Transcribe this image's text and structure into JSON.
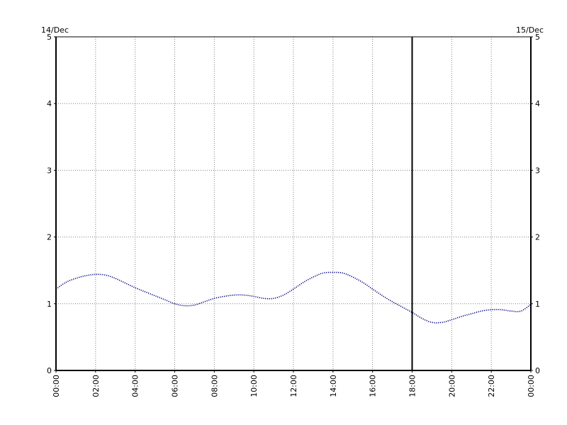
{
  "chart_data": {
    "type": "line",
    "title": "",
    "xlabel": "",
    "ylabel": "",
    "start_date_label": "14/Dec",
    "end_date_label": "15/Dec",
    "x_tick_labels": [
      "00:00",
      "02:00",
      "04:00",
      "06:00",
      "08:00",
      "10:00",
      "12:00",
      "14:00",
      "16:00",
      "18:00",
      "20:00",
      "22:00",
      "00:00"
    ],
    "y_ticks": [
      0,
      1,
      2,
      3,
      4,
      5
    ],
    "xlim": [
      0,
      24
    ],
    "ylim": [
      0,
      5
    ],
    "grid": true,
    "marker_line_x": 18,
    "series": [
      {
        "color": "#000080",
        "x": [
          0,
          0.5,
          1,
          1.5,
          2,
          2.5,
          3,
          3.5,
          4,
          4.5,
          5,
          5.5,
          6,
          6.5,
          7,
          7.5,
          8,
          8.5,
          9,
          9.5,
          10,
          10.5,
          11,
          11.5,
          12,
          12.5,
          13,
          13.5,
          14,
          14.5,
          15,
          15.5,
          16,
          16.5,
          17,
          17.5,
          18,
          18.5,
          19,
          19.5,
          20,
          20.5,
          21,
          21.5,
          22,
          22.5,
          23,
          23.5,
          24
        ],
        "y": [
          1.22,
          1.32,
          1.38,
          1.42,
          1.44,
          1.43,
          1.38,
          1.31,
          1.24,
          1.18,
          1.12,
          1.06,
          1.0,
          0.97,
          0.98,
          1.03,
          1.08,
          1.11,
          1.13,
          1.13,
          1.11,
          1.08,
          1.08,
          1.13,
          1.22,
          1.32,
          1.4,
          1.46,
          1.47,
          1.46,
          1.4,
          1.32,
          1.22,
          1.12,
          1.03,
          0.95,
          0.87,
          0.78,
          0.72,
          0.72,
          0.76,
          0.81,
          0.85,
          0.89,
          0.91,
          0.91,
          0.89,
          0.89,
          0.99
        ]
      }
    ]
  }
}
